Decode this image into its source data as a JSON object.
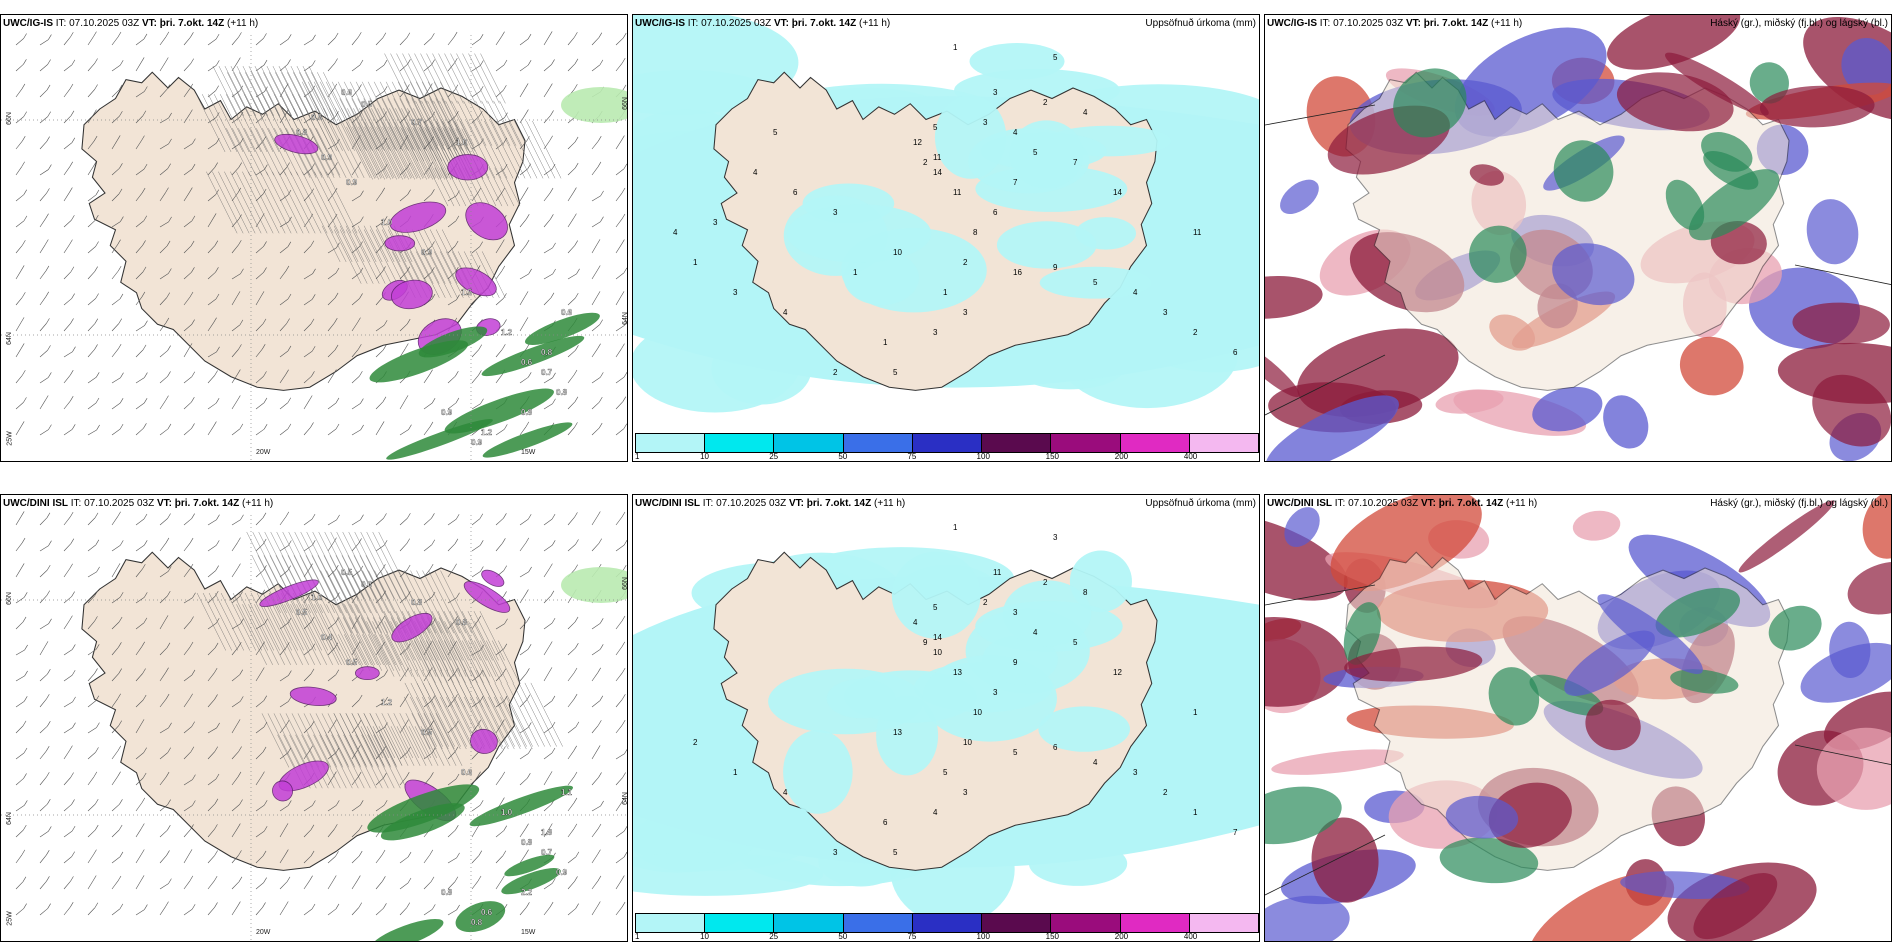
{
  "panels": [
    {
      "model": "UWC/IG-IS",
      "it_label": "IT:",
      "it": "07.10.2025 03Z",
      "vt_label": "VT:",
      "vt": "þri. 7.okt. 14Z",
      "lead": "(+11 h)",
      "right_title": "",
      "type": "wind",
      "lon_labels": [
        "20W",
        "15W"
      ],
      "lat_labels": [
        "66N",
        "64N",
        "25W",
        "66N",
        "64N"
      ],
      "values": [
        "0.6",
        "0.5",
        "0.7",
        "1.0",
        "0.5",
        "0.8",
        "0.9",
        "0.9",
        "1.0",
        "0.9",
        "1.5",
        "0.6",
        "0.7",
        "0.8",
        "0.8",
        "1.2",
        "0.9",
        "1.2",
        "0.6",
        "0.8",
        "0.9"
      ]
    },
    {
      "model": "UWC/IG-IS",
      "it_label": "IT:",
      "it": "07.10.2025 03Z",
      "vt_label": "VT:",
      "vt": "þri. 7.okt. 14Z",
      "lead": "(+11 h)",
      "right_title": "Uppsöfnuð úrkoma (mm)",
      "type": "precip",
      "values": [
        "1",
        "5",
        "3",
        "2",
        "2",
        "4",
        "5",
        "12",
        "11",
        "14",
        "11",
        "7",
        "6",
        "8",
        "10",
        "9",
        "16",
        "5",
        "4",
        "3",
        "2",
        "6",
        "11",
        "14",
        "7",
        "5",
        "4",
        "3",
        "2",
        "1",
        "3",
        "3",
        "1",
        "5",
        "2",
        "4",
        "3",
        "1",
        "4",
        "3",
        "4",
        "5",
        "6",
        "3",
        "1"
      ]
    },
    {
      "model": "UWC/IG-IS",
      "it_label": "IT:",
      "it": "07.10.2025 03Z",
      "vt_label": "VT:",
      "vt": "þri. 7.okt. 14Z",
      "lead": "(+11 h)",
      "right_title": "Háský (gr.), miðský (fj.bl.) og lágský (bl.)",
      "type": "cloud"
    },
    {
      "model": "UWC/DINI ISL",
      "it_label": "IT:",
      "it": "07.10.2025 03Z",
      "vt_label": "VT:",
      "vt": "þri. 7.okt. 14Z",
      "lead": "(+11 h)",
      "right_title": "",
      "type": "wind",
      "lon_labels": [
        "20W",
        "15W"
      ],
      "lat_labels": [
        "66N",
        "64N",
        "25W",
        "66N",
        "64N"
      ],
      "values": [
        "0.5",
        "0.6",
        "0.8",
        "0.8",
        "1.0",
        "0.5",
        "0.4",
        "0.5",
        "1.2",
        "0.5",
        "0.6",
        "0.8",
        "0.7",
        "0.9",
        "2.2",
        "0.6",
        "0.8",
        "1.0",
        "1.1",
        "1.8",
        "0.8"
      ]
    },
    {
      "model": "UWC/DINI ISL",
      "it_label": "IT:",
      "it": "07.10.2025 03Z",
      "vt_label": "VT:",
      "vt": "þri. 7.okt. 14Z",
      "lead": "(+11 h)",
      "right_title": "Uppsöfnuð úrkoma (mm)",
      "type": "precip",
      "values": [
        "1",
        "3",
        "11",
        "2",
        "9",
        "8",
        "5",
        "4",
        "14",
        "10",
        "13",
        "9",
        "3",
        "10",
        "13",
        "6",
        "5",
        "4",
        "3",
        "2",
        "1",
        "7",
        "1",
        "12",
        "5",
        "4",
        "3",
        "2",
        "10",
        "5",
        "3",
        "4",
        "6",
        "5",
        "3",
        "4",
        "1",
        "2"
      ]
    },
    {
      "model": "UWC/DINI ISL",
      "it_label": "IT:",
      "it": "07.10.2025 03Z",
      "vt_label": "VT:",
      "vt": "þri. 7.okt. 14Z",
      "lead": "(+11 h)",
      "right_title": "Háský (gr.), miðský (fj.bl.) og lágský (bl.)",
      "type": "cloud"
    }
  ],
  "colorbar": {
    "labels": [
      "1",
      "10",
      "25",
      "50",
      "75",
      "100",
      "150",
      "200",
      "400"
    ],
    "colors": [
      "#b3f5f7",
      "#00e8ee",
      "#00c4e6",
      "#3a6fe8",
      "#2a2fc4",
      "#5a0a4e",
      "#9a0c7c",
      "#e02ac2",
      "#f4b8f0"
    ]
  },
  "colors": {
    "land": "#f2e4d6",
    "sea": "#ffffff",
    "wind_green": "#2e8a3a",
    "magenta": "#c23fd6",
    "precip_light": "#b3f5f7",
    "cloud_high": "#2a8a5a",
    "cloud_mid": "#5a5ad0",
    "cloud_low": "#8b1a3a"
  }
}
